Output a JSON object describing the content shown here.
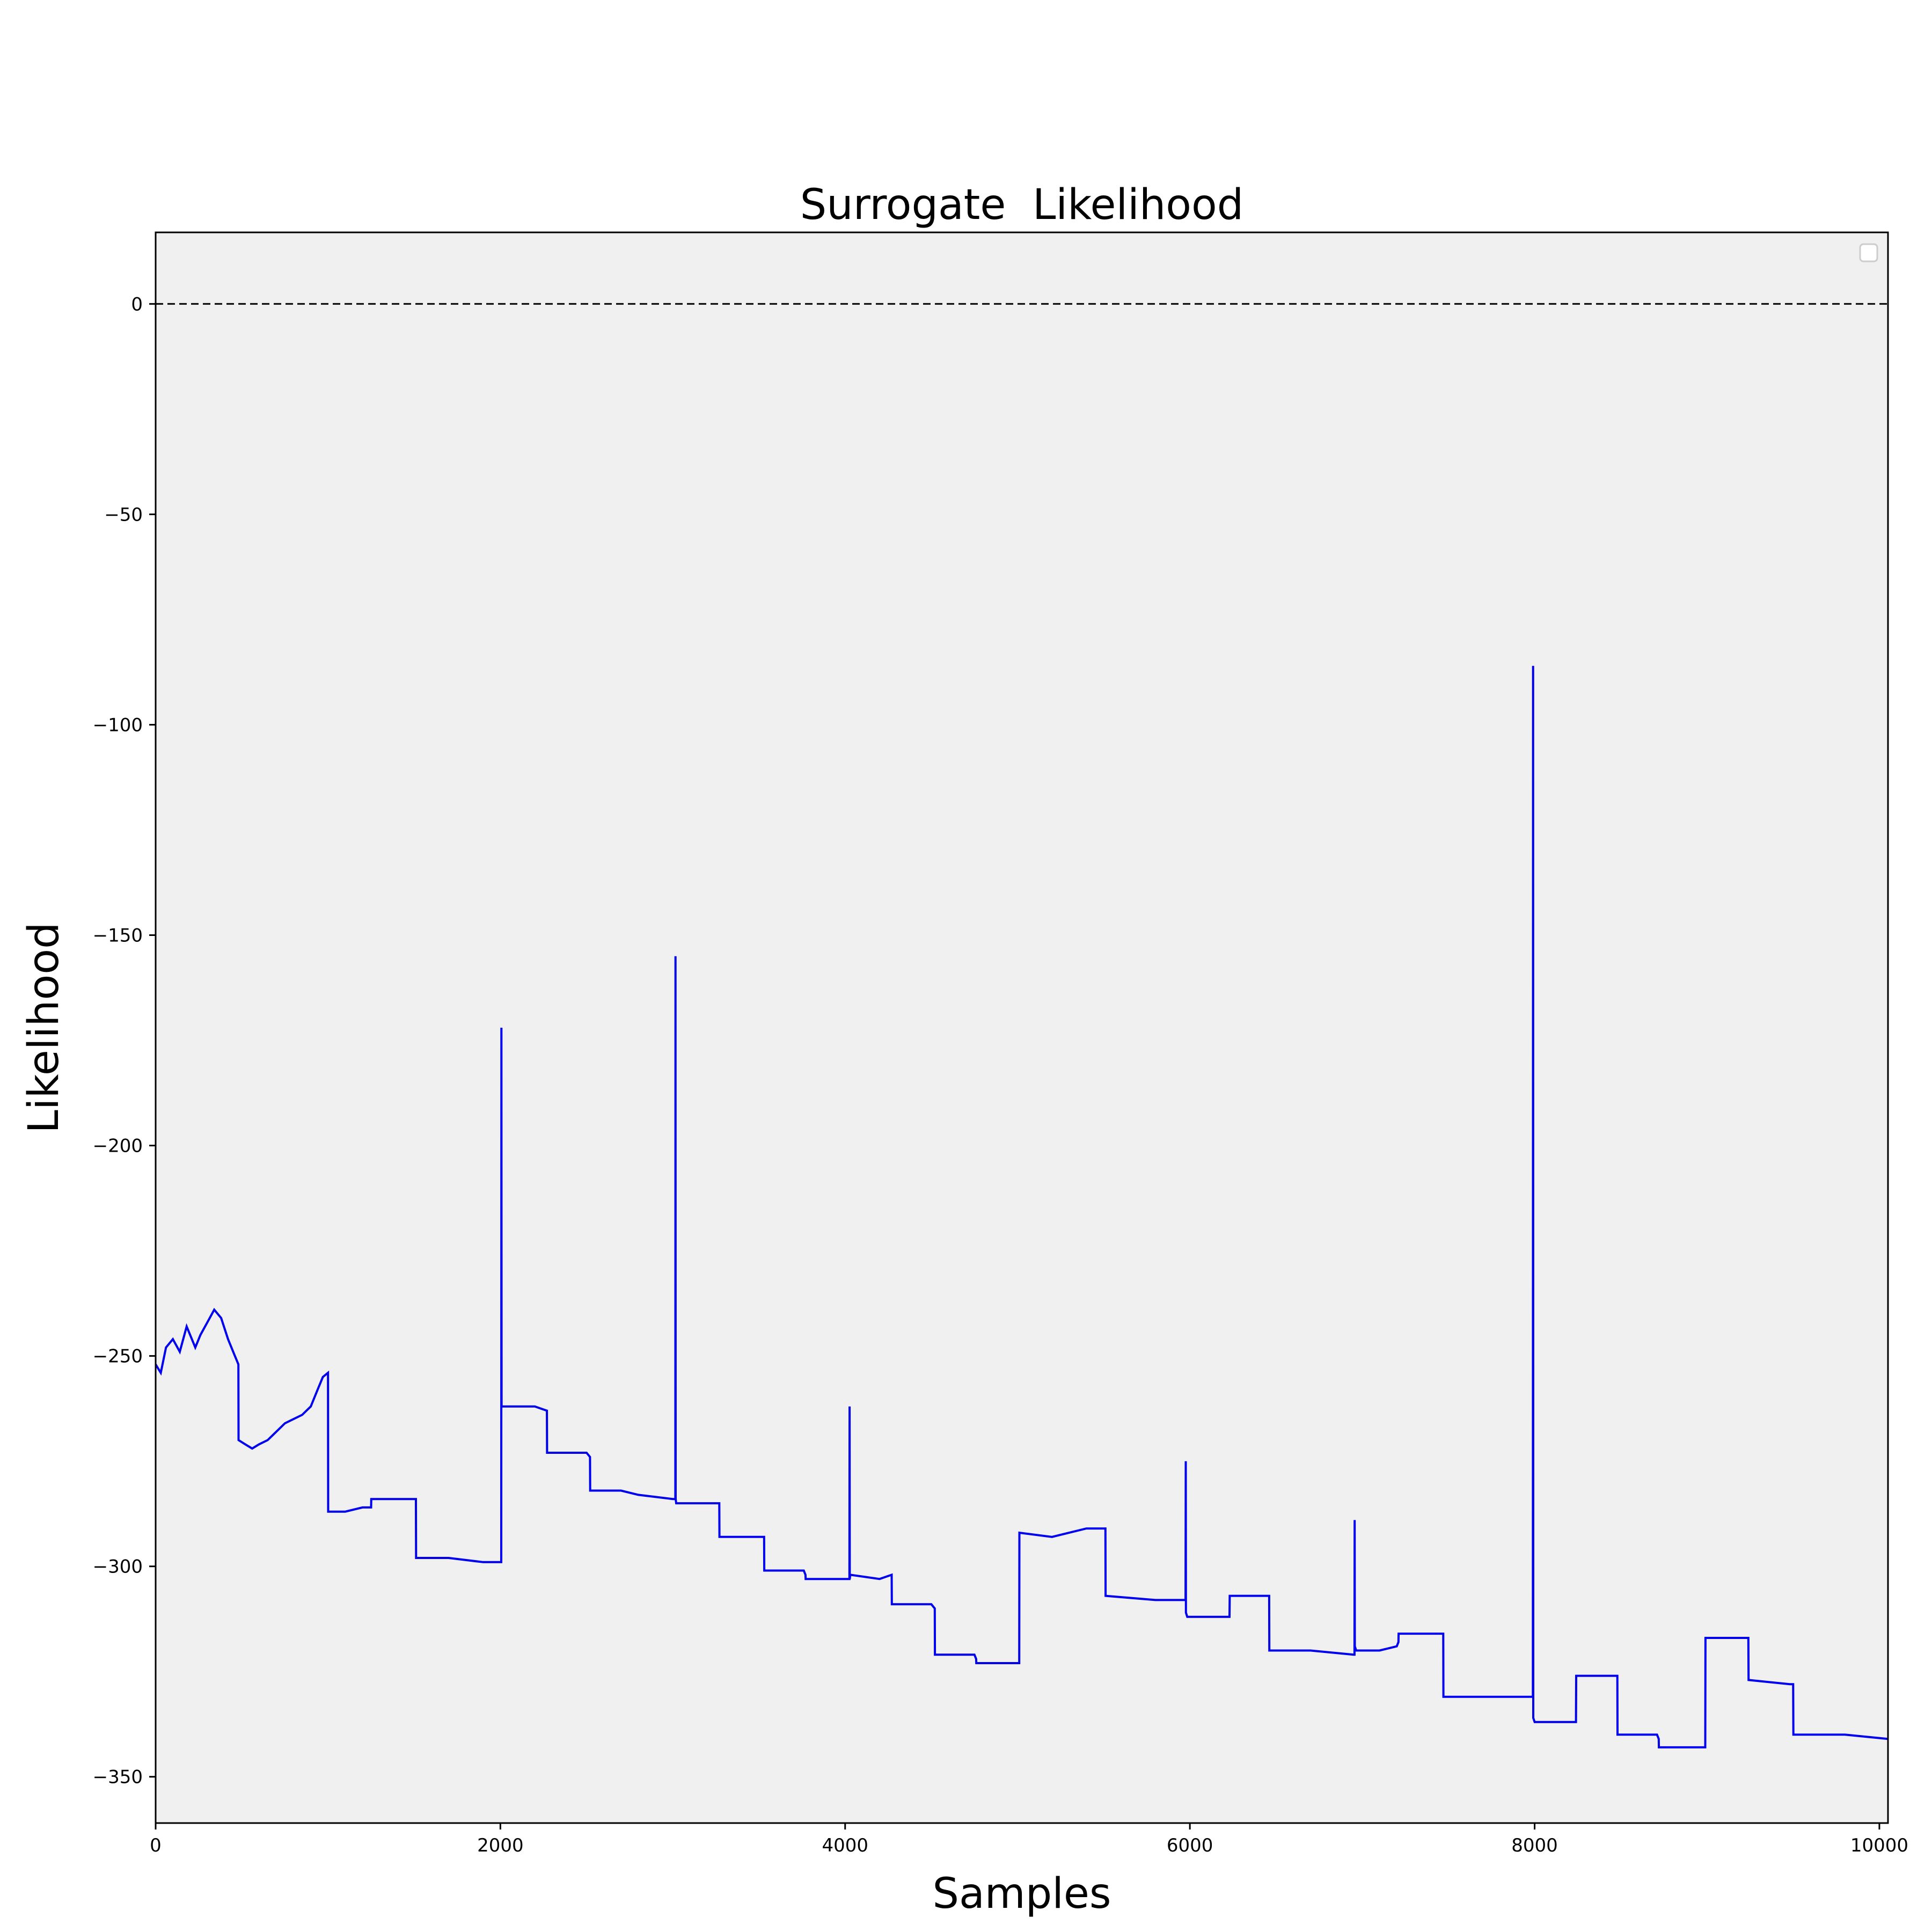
{
  "chart_data": {
    "type": "line",
    "title": "Surrogate  Likelihood",
    "xlabel": "Samples",
    "ylabel": "Likelihood",
    "xlim": [
      0,
      10050
    ],
    "ylim": [
      -361,
      17
    ],
    "xticks": [
      0,
      2000,
      4000,
      6000,
      8000,
      10000
    ],
    "xtick_labels": [
      "0",
      "2000",
      "4000",
      "6000",
      "8000",
      "10000"
    ],
    "yticks": [
      0,
      -50,
      -100,
      -150,
      -200,
      -250,
      -300,
      -350
    ],
    "ytick_labels": [
      "0",
      "−50",
      "−100",
      "−150",
      "−200",
      "−250",
      "−300",
      "−350"
    ],
    "reference_line": {
      "y": 0,
      "style": "dashed",
      "color": "#000000"
    },
    "legend": {
      "placement": "top-right",
      "entries": []
    },
    "grid": false,
    "background": "#f0f0f0",
    "series": [
      {
        "color": "#0000ee",
        "x": [
          0,
          30,
          60,
          100,
          140,
          180,
          210,
          230,
          260,
          300,
          340,
          380,
          420,
          460,
          480,
          481,
          520,
          560,
          600,
          650,
          700,
          750,
          800,
          850,
          900,
          940,
          970,
          1000,
          1001,
          1100,
          1200,
          1250,
          1251,
          1400,
          1500,
          1510,
          1511,
          1700,
          1900,
          2000,
          2005,
          2006,
          2007,
          2010,
          2200,
          2270,
          2271,
          2500,
          2520,
          2521,
          2700,
          2800,
          3000,
          3015,
          3016,
          3017,
          3020,
          3200,
          3270,
          3271,
          3500,
          3530,
          3531,
          3760,
          3770,
          3771,
          4000,
          4025,
          4026,
          4027,
          4030,
          4200,
          4270,
          4271,
          4500,
          4520,
          4521,
          4750,
          4760,
          4761,
          4900,
          5000,
          5010,
          5011,
          5200,
          5400,
          5510,
          5511,
          5800,
          5970,
          5975,
          5976,
          5977,
          5985,
          6200,
          6230,
          6231,
          6450,
          6460,
          6461,
          6700,
          6950,
          6955,
          6956,
          6957,
          6965,
          7100,
          7200,
          7210,
          7211,
          7450,
          7470,
          7471,
          7800,
          7980,
          7990,
          7991,
          7992,
          8000,
          8220,
          8240,
          8241,
          8470,
          8480,
          8481,
          8710,
          8720,
          8721,
          8980,
          8990,
          8991,
          9200,
          9240,
          9241,
          9480,
          9500,
          9501,
          9800,
          10050
        ],
        "y": [
          -252,
          -254,
          -248,
          -246,
          -249,
          -243,
          -246,
          -248,
          -245,
          -242,
          -239,
          -241,
          -246,
          -250,
          -252,
          -270,
          -271,
          -272,
          -271,
          -270,
          -268,
          -266,
          -265,
          -264,
          -262,
          -258,
          -255,
          -254,
          -287,
          -287,
          -286,
          -286,
          -284,
          -284,
          -284,
          -284,
          -298,
          -298,
          -299,
          -299,
          -299,
          -172,
          -262,
          -262,
          -262,
          -263,
          -273,
          -273,
          -274,
          -282,
          -282,
          -283,
          -284,
          -284,
          -155,
          -284,
          -285,
          -285,
          -285,
          -293,
          -293,
          -293,
          -301,
          -301,
          -302,
          -303,
          -303,
          -303,
          -262,
          -303,
          -302,
          -303,
          -302,
          -309,
          -309,
          -310,
          -321,
          -321,
          -322,
          -323,
          -323,
          -323,
          -323,
          -292,
          -293,
          -291,
          -291,
          -307,
          -308,
          -308,
          -308,
          -275,
          -311,
          -312,
          -312,
          -312,
          -307,
          -307,
          -307,
          -320,
          -320,
          -321,
          -321,
          -289,
          -319,
          -320,
          -320,
          -319,
          -318,
          -316,
          -316,
          -316,
          -331,
          -331,
          -331,
          -331,
          -86,
          -336,
          -337,
          -337,
          -337,
          -326,
          -326,
          -326,
          -340,
          -340,
          -341,
          -343,
          -343,
          -343,
          -317,
          -317,
          -317,
          -327,
          -328,
          -328,
          -340,
          -340,
          -341
        ]
      }
    ]
  }
}
